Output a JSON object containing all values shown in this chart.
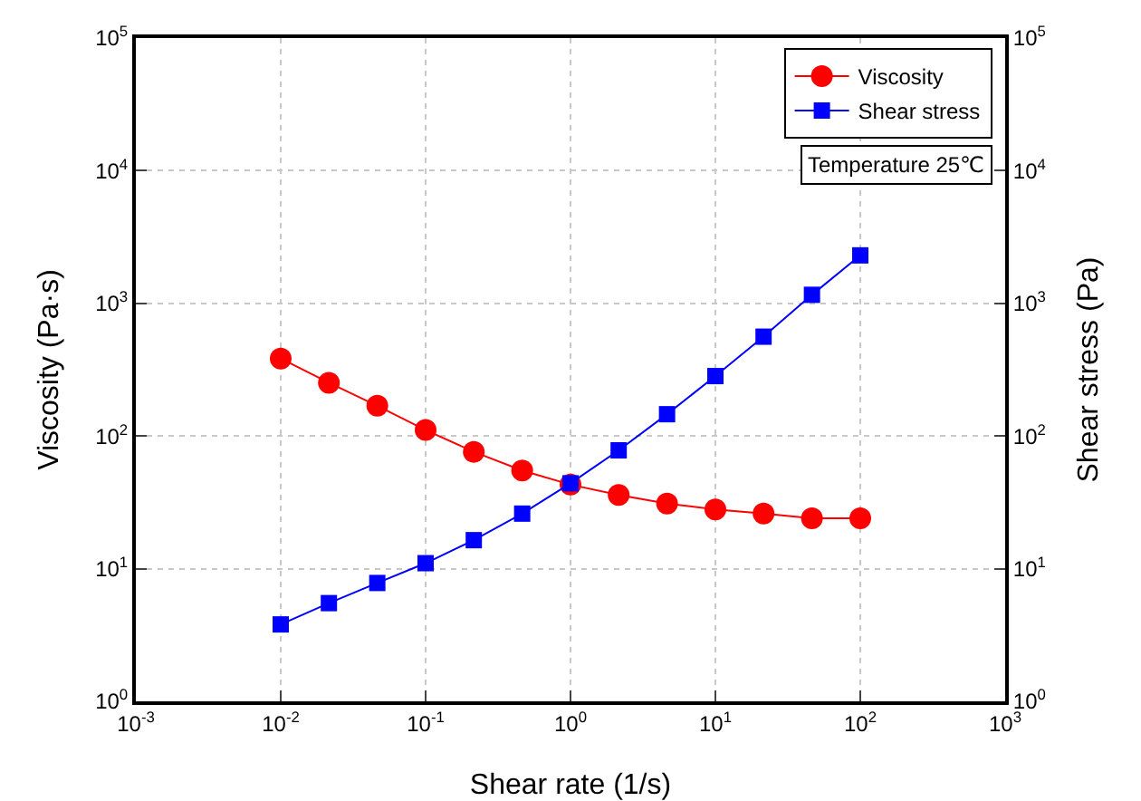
{
  "chart_data": {
    "type": "line",
    "xlabel": "Shear rate (1/s)",
    "ylabel": "Viscosity (Pa·s)",
    "y2label": "Shear stress (Pa)",
    "x": [
      0.01,
      0.0215,
      0.0464,
      0.1,
      0.215,
      0.464,
      1,
      2.15,
      4.64,
      10,
      21.5,
      46.4,
      100
    ],
    "series": [
      {
        "name": "Viscosity",
        "color": "#ff0000",
        "marker": "circle",
        "values": [
          384,
          252,
          169,
          111,
          76,
          55,
          43,
          36,
          31,
          28,
          26,
          24,
          24
        ]
      },
      {
        "name": "Shear stress",
        "color": "#0000ff",
        "marker": "square",
        "values": [
          3.8,
          5.5,
          7.8,
          11,
          16.4,
          26,
          44,
          78,
          146,
          283,
          561,
          1160,
          2300
        ]
      }
    ],
    "log": "xy",
    "xlim": [
      0.001,
      1000
    ],
    "xticks": [
      {
        "value": 0.001,
        "label": "10$^{-3}$"
      },
      {
        "value": 0.01,
        "label": "10$^{-2}$"
      },
      {
        "value": 0.1,
        "label": "10$^{-1}$"
      },
      {
        "value": 1,
        "label": "10$^{0}$"
      },
      {
        "value": 10,
        "label": "10$^{1}$"
      },
      {
        "value": 100,
        "label": "10$^{2}$"
      },
      {
        "value": 1000,
        "label": "10$^{3}$"
      }
    ],
    "ylim": [
      1,
      100000
    ],
    "yticks": [
      {
        "value": 1,
        "label": "10$^{0}$"
      },
      {
        "value": 10,
        "label": "10$^{1}$"
      },
      {
        "value": 100,
        "label": "10$^{2}$"
      },
      {
        "value": 1000,
        "label": "10$^{3}$"
      },
      {
        "value": 10000,
        "label": "10$^{4}$"
      },
      {
        "value": 100000,
        "label": "10$^{5}$"
      }
    ],
    "grid": true,
    "legend": "top right",
    "line_style": "solid",
    "annotations": [
      "Temperature 25℃"
    ]
  }
}
